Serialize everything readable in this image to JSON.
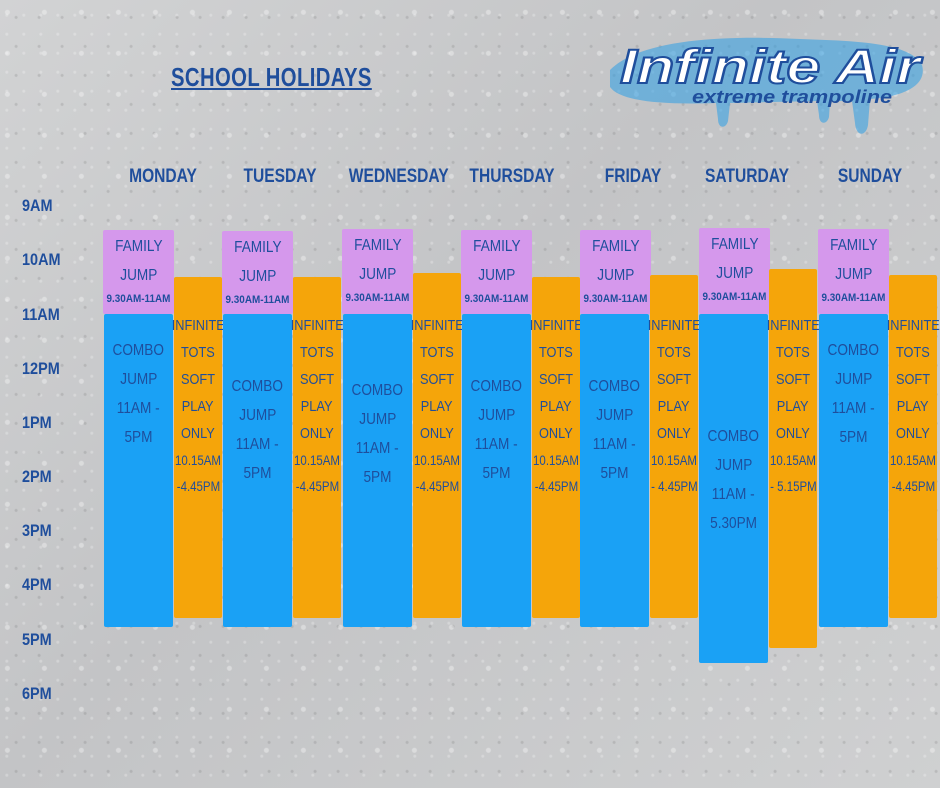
{
  "title": "SCHOOL HOLIDAYS",
  "logo": {
    "brand": "Infinite Air",
    "tagline": "extreme trampoline"
  },
  "colors": {
    "text": "#1f4e9c",
    "family_jump": "#d598ec",
    "combo_jump": "#1aa1f5",
    "infinite_tots": "#f5a50a"
  },
  "times": [
    "9AM",
    "10AM",
    "11AM",
    "12PM",
    "1PM",
    "2PM",
    "3PM",
    "4PM",
    "5PM",
    "6PM"
  ],
  "days": [
    {
      "name": "MONDAY",
      "family": {
        "line1": "FAMILY",
        "line2": "JUMP",
        "time": "9.30AM-11AM"
      },
      "combo": {
        "line1": "COMBO",
        "line2": "JUMP",
        "line3": "11AM -",
        "line4": "5PM"
      },
      "tots": {
        "line1": "INFINITE",
        "line2": "TOTS",
        "line3": "SOFT",
        "line4": "PLAY",
        "line5": "ONLY",
        "line6": "10.15AM",
        "line7": "-4.45PM"
      }
    },
    {
      "name": "TUESDAY",
      "family": {
        "line1": "FAMILY",
        "line2": "JUMP",
        "time": "9.30AM-11AM"
      },
      "combo": {
        "line1": "COMBO",
        "line2": "JUMP",
        "line3": "11AM -",
        "line4": "5PM"
      },
      "tots": {
        "line1": "INFINITE",
        "line2": "TOTS",
        "line3": "SOFT",
        "line4": "PLAY",
        "line5": "ONLY",
        "line6": "10.15AM",
        "line7": "-4.45PM"
      }
    },
    {
      "name": "WEDNESDAY",
      "family": {
        "line1": "FAMILY",
        "line2": "JUMP",
        "time": "9.30AM-11AM"
      },
      "combo": {
        "line1": "COMBO",
        "line2": "JUMP",
        "line3": "11AM -",
        "line4": "5PM"
      },
      "tots": {
        "line1": "INFINITE",
        "line2": "TOTS",
        "line3": "SOFT",
        "line4": "PLAY",
        "line5": "ONLY",
        "line6": "10.15AM",
        "line7": "-4.45PM"
      }
    },
    {
      "name": "THURSDAY",
      "family": {
        "line1": "FAMILY",
        "line2": "JUMP",
        "time": "9.30AM-11AM"
      },
      "combo": {
        "line1": "COMBO",
        "line2": "JUMP",
        "line3": "11AM -",
        "line4": "5PM"
      },
      "tots": {
        "line1": "INFINITE",
        "line2": "TOTS",
        "line3": "SOFT",
        "line4": "PLAY",
        "line5": "ONLY",
        "line6": "10.15AM",
        "line7": "-4.45PM"
      }
    },
    {
      "name": "FRIDAY",
      "family": {
        "line1": "FAMILY",
        "line2": "JUMP",
        "time": "9.30AM-11AM"
      },
      "combo": {
        "line1": "COMBO",
        "line2": "JUMP",
        "line3": "11AM -",
        "line4": "5PM"
      },
      "tots": {
        "line1": "INFINITE",
        "line2": "TOTS",
        "line3": "SOFT",
        "line4": "PLAY",
        "line5": "ONLY",
        "line6": "10.15AM",
        "line7": "- 4.45PM"
      }
    },
    {
      "name": "SATURDAY",
      "family": {
        "line1": "FAMILY",
        "line2": "JUMP",
        "time": "9.30AM-11AM"
      },
      "combo": {
        "line1": "COMBO",
        "line2": "JUMP",
        "line3": "11AM -",
        "line4": "5.30PM"
      },
      "tots": {
        "line1": "INFINITE",
        "line2": "TOTS",
        "line3": "SOFT",
        "line4": "PLAY",
        "line5": "ONLY",
        "line6": "10.15AM",
        "line7": "- 5.15PM"
      }
    },
    {
      "name": "SUNDAY",
      "family": {
        "line1": "FAMILY",
        "line2": "JUMP",
        "time": "9.30AM-11AM"
      },
      "combo": {
        "line1": "COMBO",
        "line2": "JUMP",
        "line3": "11AM -",
        "line4": "5PM"
      },
      "tots": {
        "line1": "INFINITE",
        "line2": "TOTS",
        "line3": "SOFT",
        "line4": "PLAY",
        "line5": "ONLY",
        "line6": "10.15AM",
        "line7": "-4.45PM"
      }
    }
  ]
}
